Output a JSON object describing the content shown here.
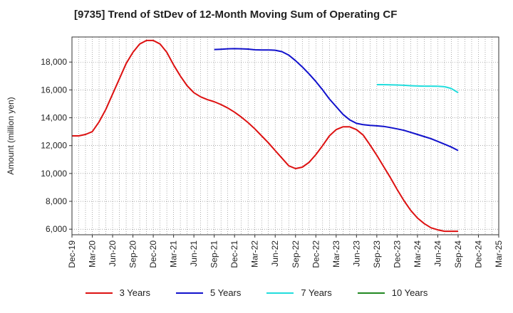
{
  "chart_data": {
    "type": "line",
    "title": "[9735]  Trend of StDev of 12-Month Moving Sum of Operating CF",
    "ylabel": "Amount (million yen)",
    "xlabel": "",
    "ylim": [
      5600,
      19800
    ],
    "yticks": [
      6000,
      8000,
      10000,
      12000,
      14000,
      16000,
      18000
    ],
    "ytick_labels": [
      "6,000",
      "8,000",
      "10,000",
      "12,000",
      "14,000",
      "16,000",
      "18,000"
    ],
    "x_start": "2019-12",
    "x_end": "2025-03",
    "xtick_labels": [
      "Dec-19",
      "Mar-20",
      "Jun-20",
      "Sep-20",
      "Dec-20",
      "Mar-21",
      "Jun-21",
      "Sep-21",
      "Dec-21",
      "Mar-22",
      "Jun-22",
      "Sep-22",
      "Dec-22",
      "Mar-23",
      "Jun-23",
      "Sep-23",
      "Dec-23",
      "Mar-24",
      "Jun-24",
      "Sep-24",
      "Dec-24",
      "Mar-25"
    ],
    "grid": true,
    "legend_position": "bottom",
    "series": [
      {
        "name": "3 Years",
        "color": "#dd1111",
        "x": [
          "2019-12",
          "2020-01",
          "2020-02",
          "2020-03",
          "2020-04",
          "2020-05",
          "2020-06",
          "2020-07",
          "2020-08",
          "2020-09",
          "2020-10",
          "2020-11",
          "2020-12",
          "2021-01",
          "2021-02",
          "2021-03",
          "2021-04",
          "2021-05",
          "2021-06",
          "2021-07",
          "2021-08",
          "2021-09",
          "2021-10",
          "2021-11",
          "2021-12",
          "2022-01",
          "2022-02",
          "2022-03",
          "2022-04",
          "2022-05",
          "2022-06",
          "2022-07",
          "2022-08",
          "2022-09",
          "2022-10",
          "2022-11",
          "2022-12",
          "2023-01",
          "2023-02",
          "2023-03",
          "2023-04",
          "2023-05",
          "2023-06",
          "2023-07",
          "2023-08",
          "2023-09",
          "2023-10",
          "2023-11",
          "2023-12",
          "2024-01",
          "2024-02",
          "2024-03",
          "2024-04",
          "2024-05",
          "2024-06",
          "2024-07",
          "2024-08",
          "2024-09"
        ],
        "values": [
          12700,
          12700,
          12800,
          13000,
          13700,
          14600,
          15700,
          16800,
          17900,
          18700,
          19300,
          19550,
          19550,
          19300,
          18700,
          17800,
          17000,
          16300,
          15800,
          15500,
          15300,
          15150,
          14950,
          14700,
          14400,
          14050,
          13650,
          13200,
          12700,
          12200,
          11650,
          11100,
          10550,
          10350,
          10450,
          10800,
          11350,
          12000,
          12700,
          13150,
          13350,
          13350,
          13150,
          12750,
          12050,
          11300,
          10500,
          9700,
          8850,
          8050,
          7350,
          6800,
          6400,
          6100,
          5950,
          5850,
          5850,
          5850
        ]
      },
      {
        "name": "5 Years",
        "color": "#1111cc",
        "x": [
          "2021-09",
          "2021-10",
          "2021-11",
          "2021-12",
          "2022-01",
          "2022-02",
          "2022-03",
          "2022-04",
          "2022-05",
          "2022-06",
          "2022-07",
          "2022-08",
          "2022-09",
          "2022-10",
          "2022-11",
          "2022-12",
          "2023-01",
          "2023-02",
          "2023-03",
          "2023-04",
          "2023-05",
          "2023-06",
          "2023-07",
          "2023-08",
          "2023-09",
          "2023-10",
          "2023-11",
          "2023-12",
          "2024-01",
          "2024-02",
          "2024-03",
          "2024-04",
          "2024-05",
          "2024-06",
          "2024-07",
          "2024-08",
          "2024-09"
        ],
        "values": [
          18900,
          18920,
          18950,
          18960,
          18950,
          18930,
          18880,
          18870,
          18870,
          18850,
          18750,
          18500,
          18100,
          17650,
          17150,
          16600,
          16000,
          15350,
          14800,
          14250,
          13850,
          13600,
          13500,
          13450,
          13420,
          13380,
          13300,
          13200,
          13100,
          12950,
          12800,
          12650,
          12500,
          12300,
          12100,
          11900,
          11650
        ]
      },
      {
        "name": "7 Years",
        "color": "#22dddd",
        "x": [
          "2023-09",
          "2023-10",
          "2023-11",
          "2023-12",
          "2024-01",
          "2024-02",
          "2024-03",
          "2024-04",
          "2024-05",
          "2024-06",
          "2024-07",
          "2024-08",
          "2024-09"
        ],
        "values": [
          16380,
          16380,
          16370,
          16350,
          16330,
          16300,
          16280,
          16270,
          16270,
          16260,
          16230,
          16100,
          15800
        ]
      },
      {
        "name": "10 Years",
        "color": "#228822",
        "x": [],
        "values": []
      }
    ]
  }
}
